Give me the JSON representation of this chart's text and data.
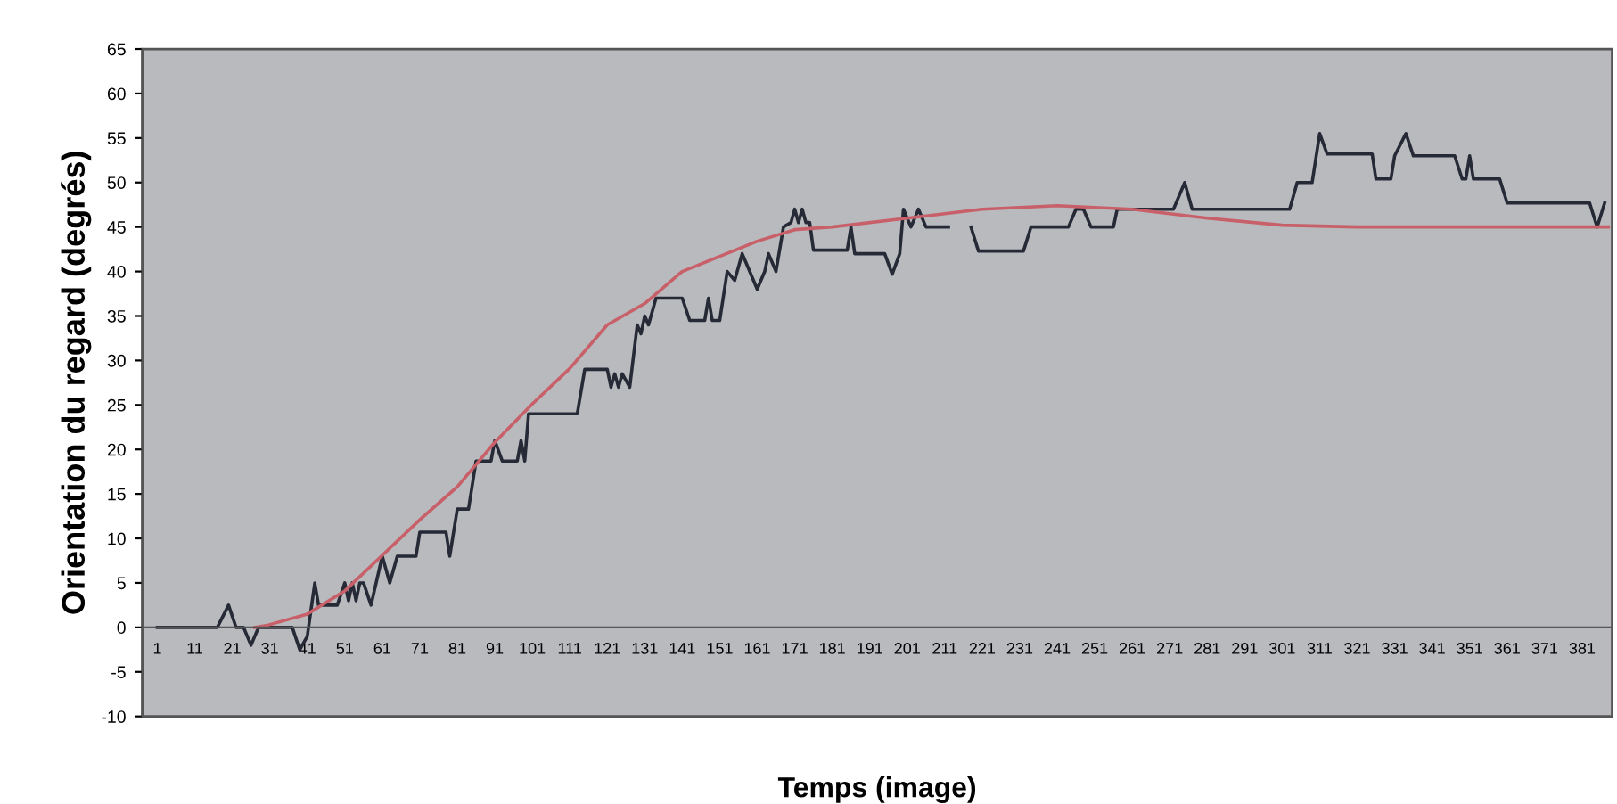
{
  "chart_data": {
    "type": "line",
    "xlabel": "Temps (image)",
    "ylabel": "Orientation du regard (degrés)",
    "xlim": [
      -3,
      389
    ],
    "xticks": [
      1,
      11,
      21,
      31,
      41,
      51,
      61,
      71,
      81,
      91,
      101,
      111,
      121,
      131,
      141,
      151,
      161,
      171,
      181,
      191,
      201,
      211,
      221,
      231,
      241,
      251,
      261,
      271,
      281,
      291,
      301,
      311,
      321,
      331,
      341,
      351,
      361,
      371,
      381
    ],
    "ylim": [
      -10,
      65
    ],
    "yticks": [
      -10,
      -5,
      0,
      5,
      10,
      15,
      20,
      25,
      30,
      35,
      40,
      45,
      50,
      55,
      60,
      65
    ],
    "grid": false,
    "legend": false,
    "marker": "none",
    "line_style": "solid",
    "series": [
      {
        "color": "#262a36",
        "x": [
          1,
          17,
          20,
          22,
          24,
          26,
          28,
          37,
          39,
          41,
          43,
          44,
          49,
          51,
          52,
          53,
          54,
          55,
          56,
          58,
          61,
          63,
          65,
          70,
          71,
          78,
          79,
          81,
          84,
          86,
          90,
          91,
          93,
          97,
          98,
          99,
          100,
          113,
          115,
          121,
          122,
          123,
          124,
          125,
          127,
          129,
          130,
          131,
          132,
          134,
          141,
          143,
          147,
          148,
          149,
          151,
          153,
          155,
          157,
          159,
          161,
          163,
          164,
          166,
          168,
          170,
          171,
          172,
          173,
          174,
          175,
          176,
          185,
          186,
          187,
          195,
          197,
          199,
          200,
          202,
          204,
          206,
          211,
          212,
          215,
          218,
          220,
          232,
          234,
          244,
          246,
          248,
          250,
          256,
          257,
          272,
          275,
          277,
          303,
          305,
          309,
          311,
          313,
          325,
          326,
          330,
          331,
          334,
          336,
          347,
          349,
          350,
          351,
          352,
          359,
          361,
          383,
          385,
          387
        ],
        "values": [
          0,
          0,
          2.5,
          0,
          0,
          -2,
          0,
          0,
          -2.5,
          -1,
          5,
          2.5,
          2.5,
          5,
          3,
          5,
          3,
          5,
          5,
          2.5,
          8,
          5,
          8,
          8,
          10.7,
          10.7,
          8,
          13.3,
          13.3,
          18.7,
          18.7,
          21,
          18.7,
          18.7,
          21,
          18.7,
          24,
          24,
          29,
          29,
          27,
          28.5,
          27,
          28.5,
          27,
          34,
          33,
          35,
          34,
          37,
          37,
          34.5,
          34.5,
          37,
          34.5,
          34.5,
          40,
          39,
          42,
          40,
          38,
          40,
          42,
          40,
          45,
          45.5,
          47,
          45.5,
          47,
          45.5,
          45.5,
          42.4,
          42.4,
          45,
          42,
          42,
          39.7,
          42,
          47,
          45,
          47,
          45,
          45,
          45,
          null,
          45,
          42.3,
          42.3,
          45,
          45,
          47,
          47,
          45,
          45,
          47,
          47,
          50,
          47,
          47,
          50,
          50,
          55.5,
          53.2,
          53.2,
          50.4,
          50.4,
          53,
          55.5,
          53,
          53,
          50.4,
          50.4,
          53,
          50.4,
          50.4,
          47.7,
          47.7,
          45,
          47.7
        ]
      },
      {
        "color": "#c8606a",
        "x": [
          27,
          30,
          41,
          51,
          61,
          71,
          81,
          91,
          101,
          111,
          121,
          131,
          141,
          151,
          161,
          171,
          181,
          201,
          221,
          241,
          261,
          281,
          301,
          321,
          361,
          388
        ],
        "values": [
          0,
          0.2,
          1.5,
          4.1,
          8.1,
          12.1,
          15.8,
          20.8,
          25.1,
          29.1,
          34,
          36.4,
          40,
          41.7,
          43.4,
          44.7,
          45,
          46,
          47,
          47.4,
          47,
          46,
          45.2,
          45,
          45,
          45
        ]
      }
    ]
  }
}
